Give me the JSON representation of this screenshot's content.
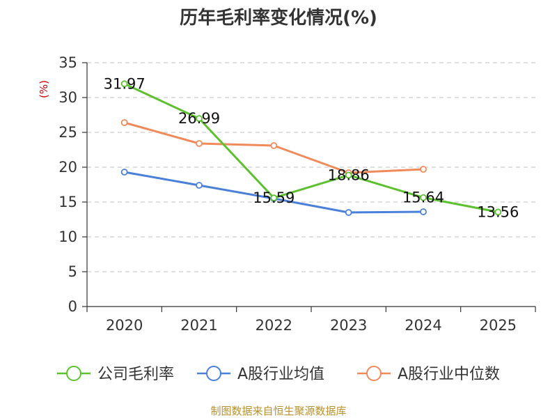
{
  "chart_data": {
    "type": "line",
    "title": "历年毛利率变化情况(%)",
    "ylabel": "(%)",
    "xlabel": "",
    "categories": [
      "2020",
      "2021",
      "2022",
      "2023",
      "2024",
      "2025"
    ],
    "yticks": [
      "0",
      "5",
      "10",
      "15",
      "20",
      "25",
      "30",
      "35"
    ],
    "ylim": [
      0,
      35
    ],
    "grid": true,
    "legend_position": "bottom",
    "series": [
      {
        "name": "公司毛利率",
        "color": "#5dc12f",
        "values": [
          31.97,
          26.99,
          15.59,
          18.86,
          15.64,
          13.56
        ],
        "labels": [
          "31.97",
          "26.99",
          "15.59",
          "18.86",
          "15.64",
          "13.56"
        ]
      },
      {
        "name": "A股行业均值",
        "color": "#4a80d9",
        "values": [
          19.3,
          17.4,
          15.5,
          13.5,
          13.6,
          null
        ]
      },
      {
        "name": "A股行业中位数",
        "color": "#f08a5a",
        "values": [
          26.4,
          23.4,
          23.1,
          19.2,
          19.7,
          null
        ]
      }
    ],
    "source": "制图数据来自恒生聚源数据库"
  }
}
